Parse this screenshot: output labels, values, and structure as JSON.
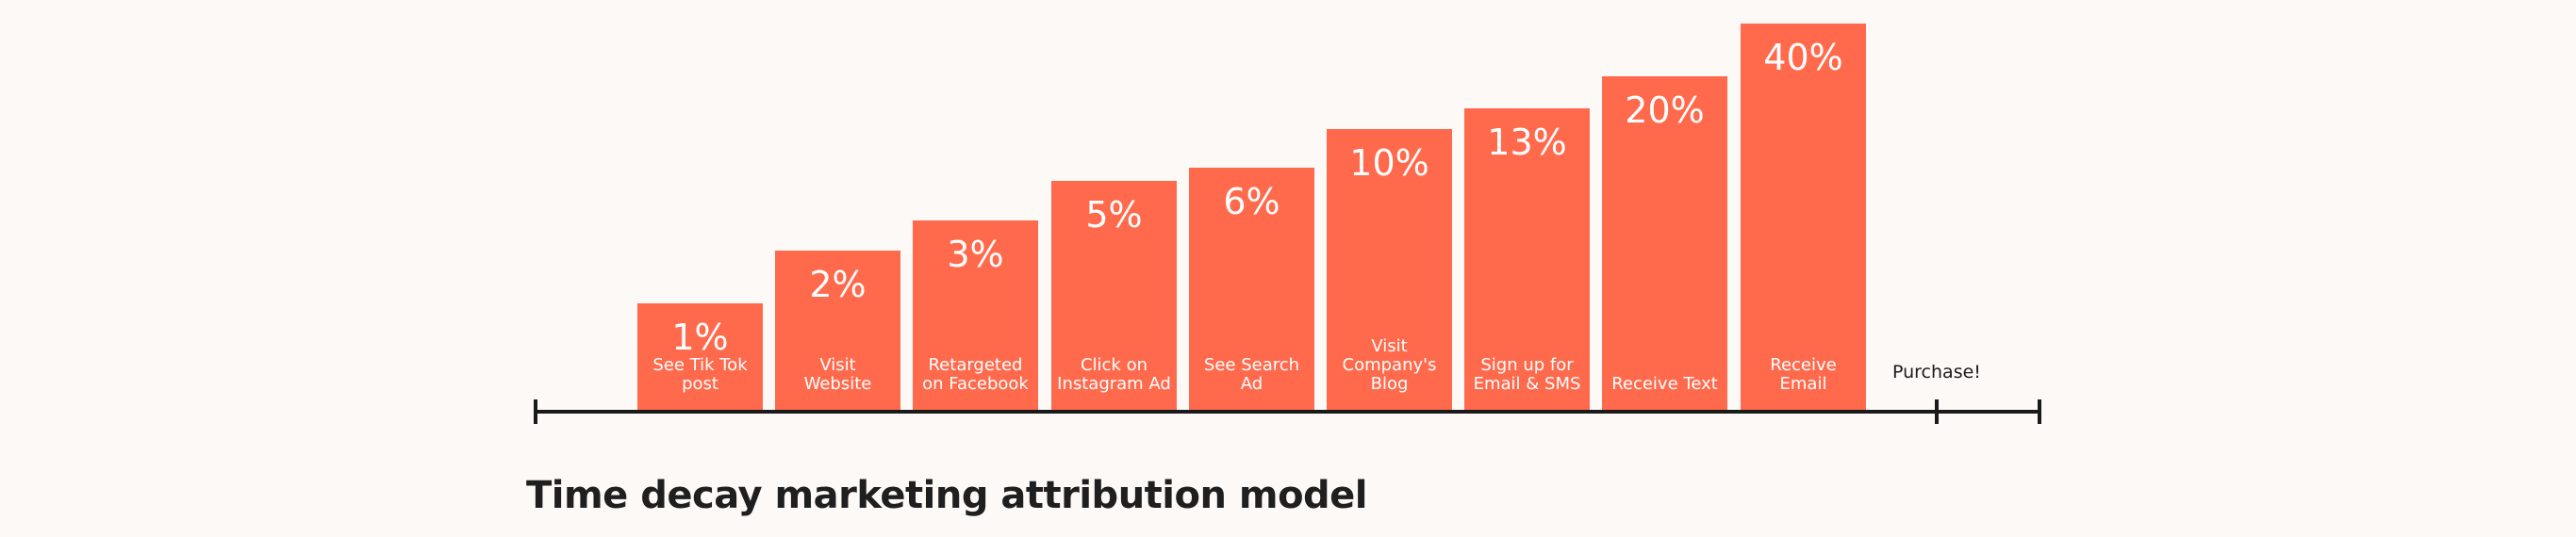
{
  "chart_data": {
    "type": "bar",
    "title": "Time decay marketing attribution model",
    "categories": [
      "See Tik Tok\npost",
      "Visit\nWebsite",
      "Retargeted\non Facebook",
      "Click on\nInstagram Ad",
      "See Search\nAd",
      "Visit\nCompany's\nBlog",
      "Sign up for\nEmail & SMS",
      "Receive Text",
      "Receive Email"
    ],
    "values": [
      1,
      2,
      3,
      5,
      6,
      10,
      13,
      20,
      40
    ],
    "value_labels": [
      "1%",
      "2%",
      "3%",
      "5%",
      "6%",
      "10%",
      "13%",
      "20%",
      "40%"
    ],
    "end_label": "Purchase!",
    "xlabel": "",
    "ylabel": "",
    "grid": false,
    "bar_color": "#ff6a4d",
    "axis_color": "#1a1a1a",
    "background": "#fdf9f6"
  }
}
